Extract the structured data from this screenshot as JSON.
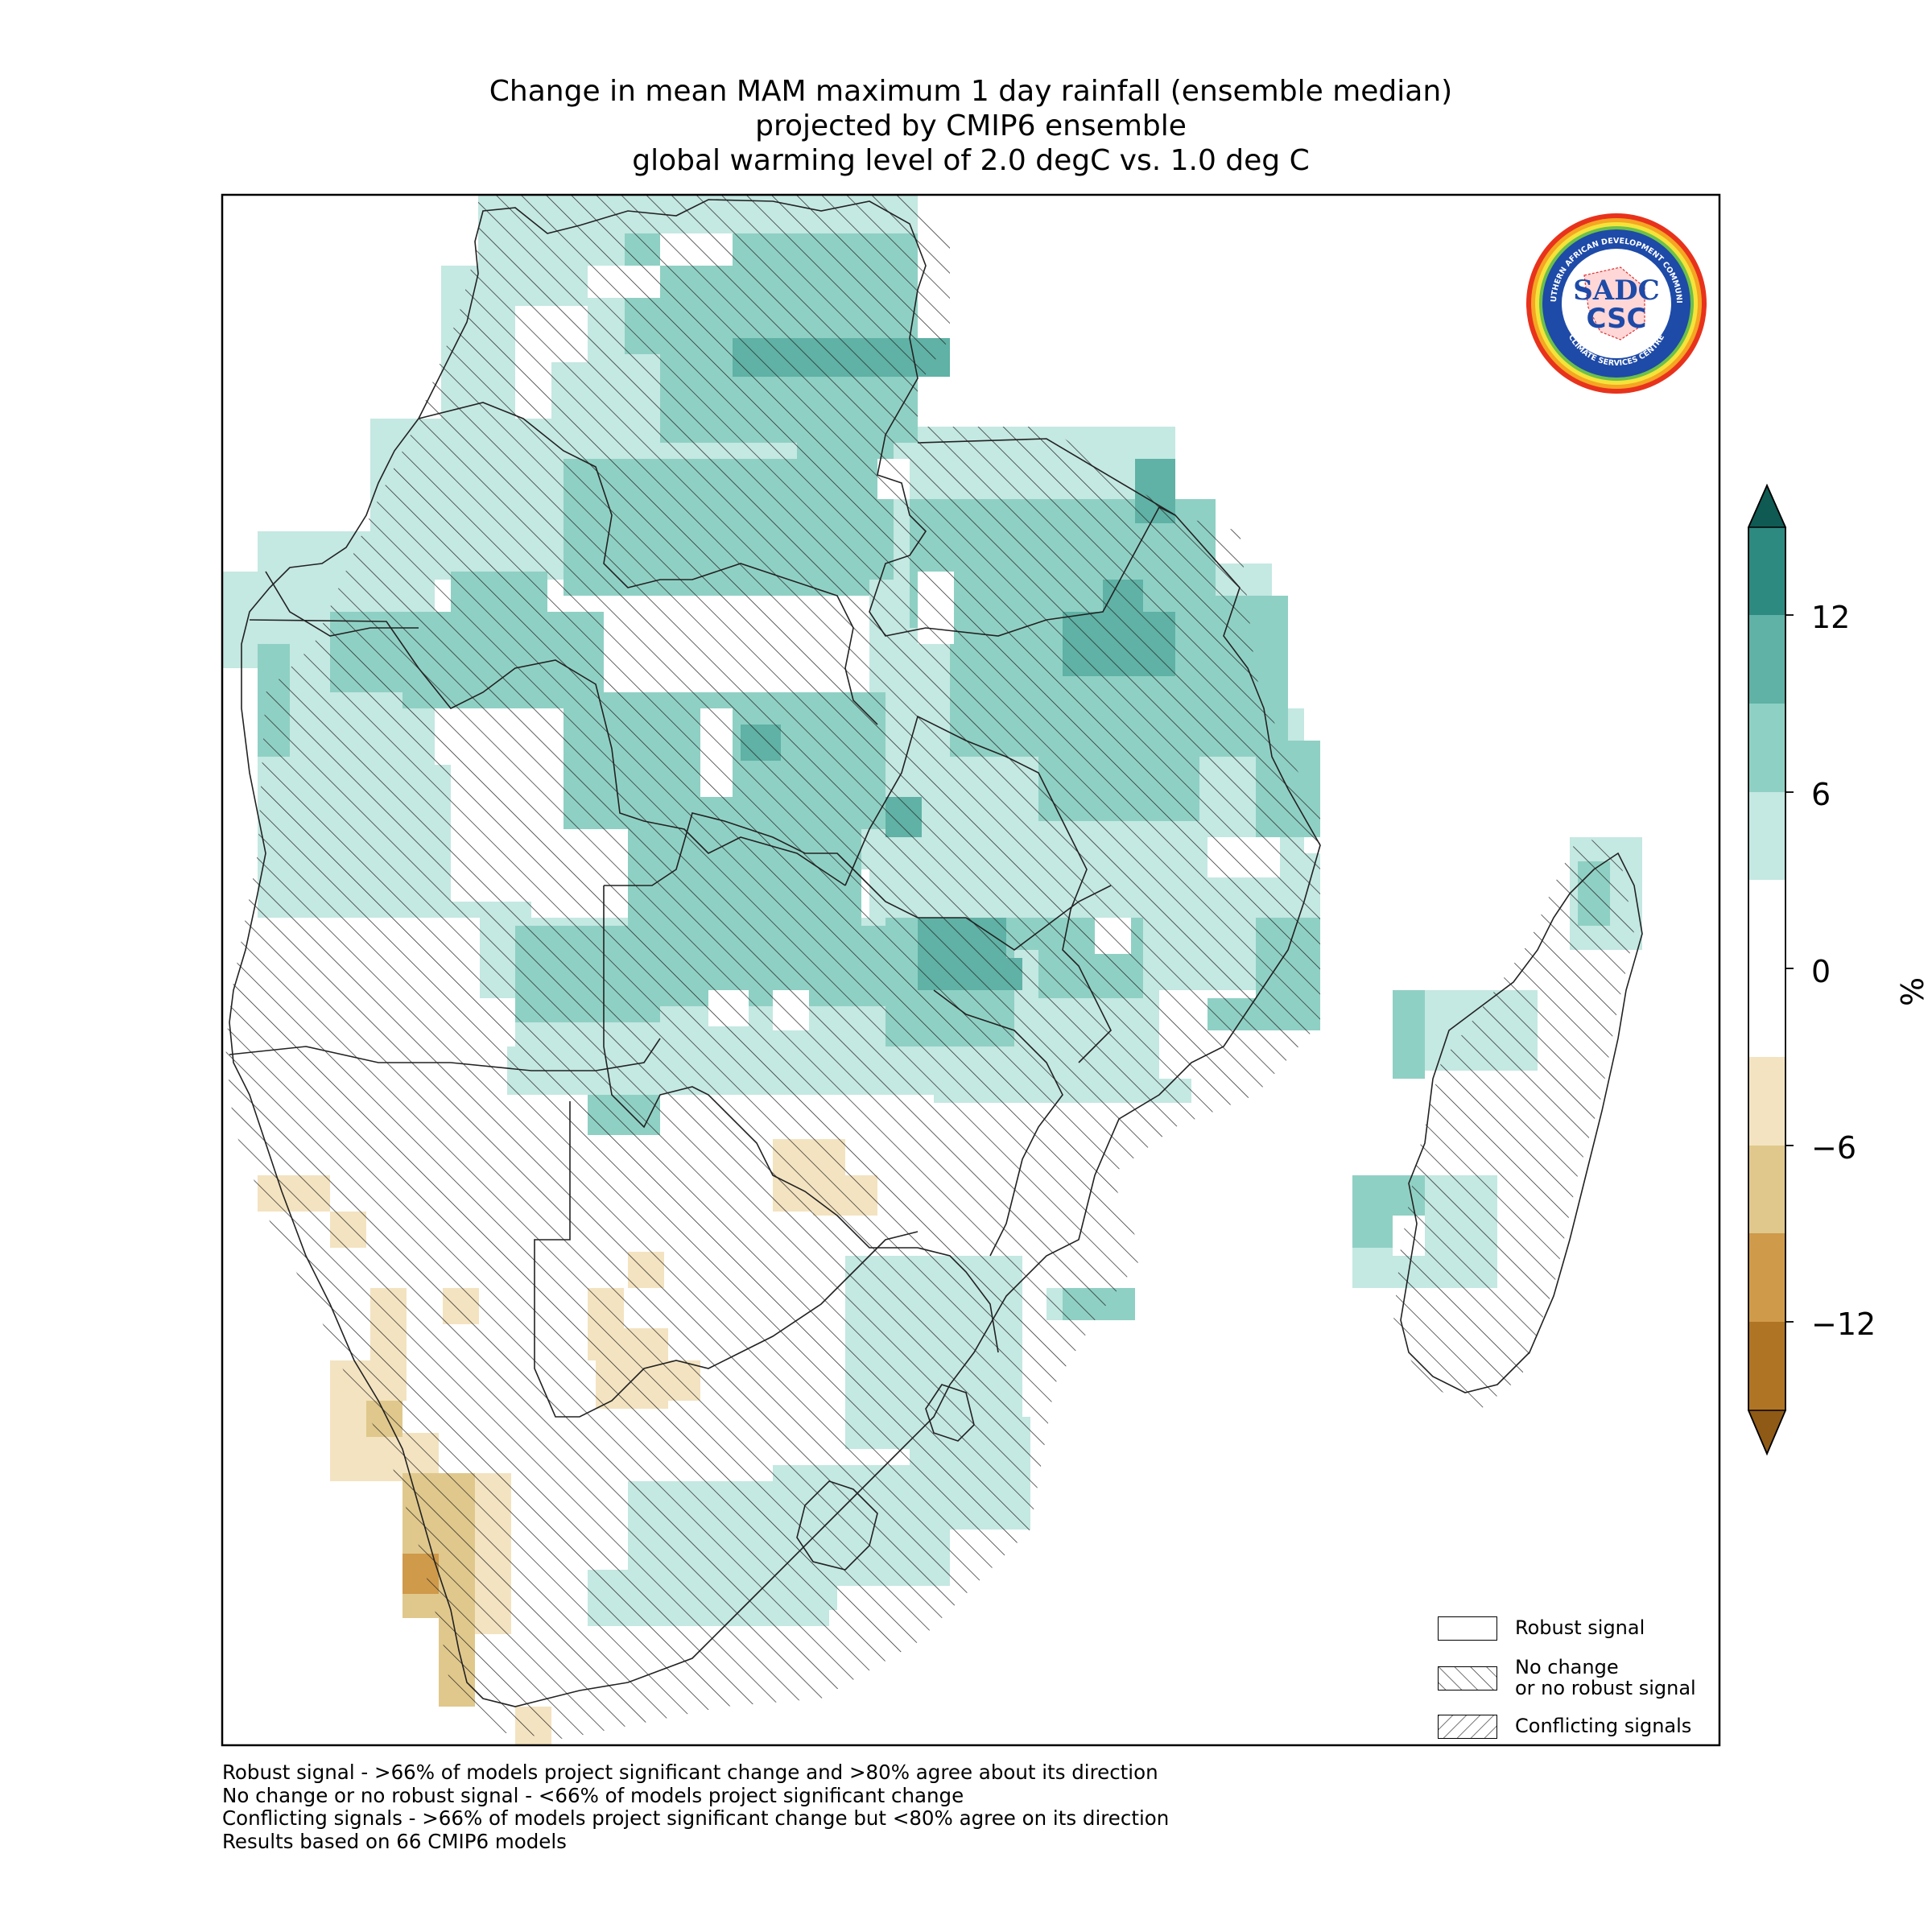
{
  "title": {
    "line1": "Change in mean MAM maximum 1 day rainfall (ensemble median)",
    "line2": "projected by CMIP6 ensemble",
    "line3": "global warming level of 2.0 degC vs. 1.0 deg C"
  },
  "colorbar": {
    "unit": "%",
    "ticks": [
      "12",
      "6",
      "0",
      "−6",
      "−12"
    ],
    "tick_values": [
      12,
      6,
      0,
      -6,
      -12
    ],
    "levels": [
      -15,
      -12,
      -9,
      -6,
      -3,
      3,
      6,
      9,
      12,
      15
    ],
    "colors": {
      "neg_extend": "#8f5a16",
      "neg4": "#b07425",
      "neg3": "#cf9a4a",
      "neg2": "#e0c88c",
      "neg1": "#f3e3c0",
      "zero": "#ffffff",
      "pos1": "#c4e8e2",
      "pos2": "#8fd0c4",
      "pos3": "#5fb2a5",
      "pos4": "#2d8a80",
      "pos_extend": "#0f5a52"
    }
  },
  "legend": {
    "robust": "Robust signal",
    "no_change_line1": "No change",
    "no_change_line2": "or no robust signal",
    "conflicting": "Conflicting signals"
  },
  "footnotes": {
    "line1": "Robust signal - >66% of models project significant change and >80% agree about its direction",
    "line2": "No change or no robust signal - <66% of models project significant change",
    "line3": "Conflicting signals - >66% of models project significant change but <80% agree on its direction",
    "line4": "Results based on 66 CMIP6 models"
  },
  "logo": {
    "text_top": "SOUTHERN AFRICAN DEVELOPMENT COMMUNITY",
    "text_bottom": "CLIMATE SERVICES CENTRE",
    "mark1": "SADC",
    "mark2": "CSC"
  }
}
